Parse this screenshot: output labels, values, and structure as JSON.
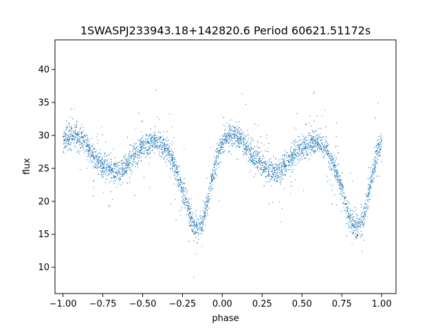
{
  "chart_data": {
    "type": "scatter",
    "title": "1SWASPJ233943.18+142820.6 Period 60621.51172s",
    "xlabel": "phase",
    "ylabel": "flux",
    "xlim": [
      -1.05,
      1.09
    ],
    "ylim": [
      6.0,
      44.5
    ],
    "grid": false,
    "legend": "none",
    "marker_color": "#1f77b4",
    "x_ticks": [
      -1.0,
      -0.75,
      -0.5,
      -0.25,
      0.0,
      0.25,
      0.5,
      0.75,
      1.0
    ],
    "x_tick_labels": [
      "−1.00",
      "−0.75",
      "−0.50",
      "−0.25",
      "0.00",
      "0.25",
      "0.50",
      "0.75",
      "1.00"
    ],
    "y_ticks": [
      10,
      15,
      20,
      25,
      30,
      35,
      40
    ],
    "y_tick_labels": [
      "10",
      "15",
      "20",
      "25",
      "30",
      "35",
      "40"
    ],
    "series": [
      {
        "phase_model": [
          [
            0.0,
            29.2
          ],
          [
            0.04,
            29.8
          ],
          [
            0.08,
            29.9
          ],
          [
            0.12,
            29.3
          ],
          [
            0.16,
            28.0
          ],
          [
            0.2,
            26.5
          ],
          [
            0.25,
            25.4
          ],
          [
            0.3,
            24.8
          ],
          [
            0.34,
            24.4
          ],
          [
            0.38,
            25.0
          ],
          [
            0.42,
            26.2
          ],
          [
            0.46,
            27.4
          ],
          [
            0.5,
            28.2
          ],
          [
            0.55,
            28.8
          ],
          [
            0.6,
            29.0
          ],
          [
            0.64,
            28.2
          ],
          [
            0.68,
            26.5
          ],
          [
            0.72,
            24.0
          ],
          [
            0.76,
            21.0
          ],
          [
            0.79,
            18.5
          ],
          [
            0.82,
            16.4
          ],
          [
            0.85,
            15.6
          ],
          [
            0.88,
            17.0
          ],
          [
            0.91,
            20.0
          ],
          [
            0.94,
            23.8
          ],
          [
            0.97,
            27.0
          ],
          [
            1.0,
            29.2
          ]
        ],
        "scatter_sigma": 0.9,
        "outlier_fraction": 0.05,
        "n_points": 7000
      }
    ]
  }
}
